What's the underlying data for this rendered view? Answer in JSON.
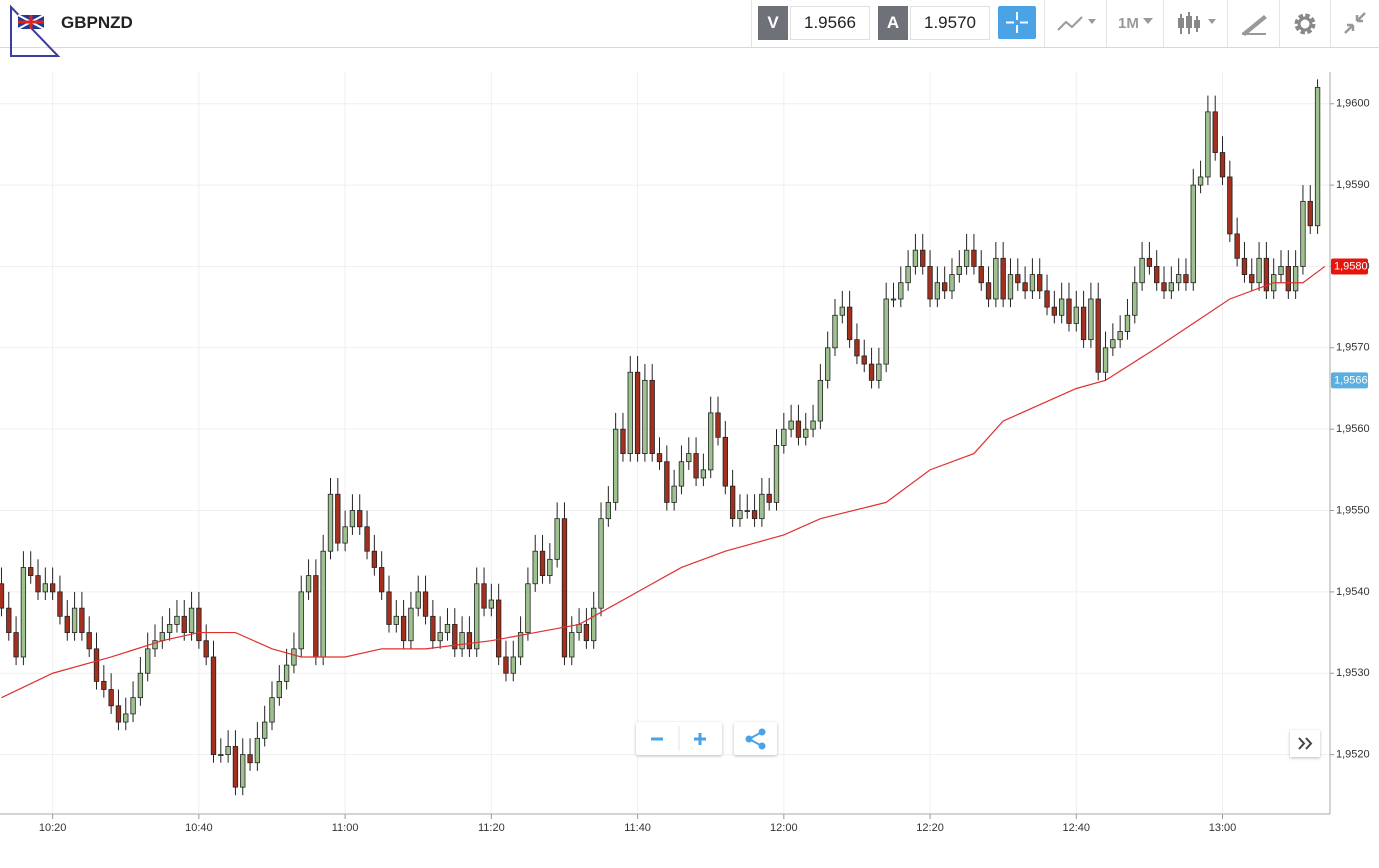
{
  "header": {
    "symbol": "GBPNZD",
    "bid_label": "V",
    "bid": "1.9566",
    "ask_label": "A",
    "ask": "1.9570",
    "timeframe": "1M"
  },
  "chart_data": {
    "type": "candlestick",
    "x": [
      613,
      614,
      615,
      616,
      617,
      618,
      619,
      620,
      621,
      622,
      623,
      624,
      625,
      626,
      627,
      628,
      629,
      630,
      631,
      632,
      633,
      634,
      635,
      636,
      637,
      638,
      639,
      640,
      641,
      642,
      643,
      644,
      645,
      646,
      647,
      648,
      649,
      650,
      651,
      652,
      653,
      654,
      655,
      656,
      657,
      658,
      659,
      660,
      661,
      662,
      663,
      664,
      665,
      666,
      667,
      668,
      669,
      670,
      671,
      672,
      673,
      674,
      675,
      676,
      677,
      678,
      679,
      680,
      681,
      682,
      683,
      684,
      685,
      686,
      687,
      688,
      689,
      690,
      691,
      692,
      693,
      694,
      695,
      696,
      697,
      698,
      699,
      700,
      701,
      702,
      703,
      704,
      705,
      706,
      707,
      708,
      709,
      710,
      711,
      712,
      713,
      714,
      715,
      716,
      717,
      718,
      719,
      720,
      721,
      722,
      723,
      724,
      725,
      726,
      727,
      728,
      729,
      730,
      731,
      732,
      733,
      734,
      735,
      736,
      737,
      738,
      739,
      740,
      741,
      742,
      743,
      744,
      745,
      746,
      747,
      748,
      749,
      750,
      751,
      752,
      753,
      754,
      755,
      756,
      757,
      758,
      759,
      760,
      761,
      762,
      763,
      764,
      765,
      766,
      767,
      768,
      769,
      770,
      771,
      772,
      773,
      774,
      775,
      776,
      777,
      778,
      779,
      780,
      781,
      782,
      783,
      784,
      785,
      786,
      787,
      788,
      789,
      790,
      791,
      792,
      793
    ],
    "open": [
      1.9541,
      1.9538,
      1.9535,
      1.9532,
      1.9543,
      1.9542,
      1.954,
      1.9541,
      1.954,
      1.9537,
      1.9535,
      1.9538,
      1.9535,
      1.9533,
      1.9529,
      1.9528,
      1.9526,
      1.9524,
      1.9525,
      1.9527,
      1.953,
      1.9533,
      1.9534,
      1.9535,
      1.9536,
      1.9537,
      1.9535,
      1.9538,
      1.9534,
      1.9532,
      1.952,
      1.952,
      1.9521,
      1.9516,
      1.952,
      1.9519,
      1.9522,
      1.9524,
      1.9527,
      1.9529,
      1.9531,
      1.9533,
      1.954,
      1.9542,
      1.9532,
      1.9545,
      1.9552,
      1.9546,
      1.9548,
      1.955,
      1.9548,
      1.9545,
      1.9543,
      1.954,
      1.9536,
      1.9537,
      1.9534,
      1.9538,
      1.954,
      1.9537,
      1.9534,
      1.9535,
      1.9536,
      1.9533,
      1.9535,
      1.9533,
      1.9541,
      1.9538,
      1.9539,
      1.9532,
      1.953,
      1.9532,
      1.9535,
      1.9541,
      1.9545,
      1.9542,
      1.9544,
      1.9549,
      1.9532,
      1.9535,
      1.9536,
      1.9534,
      1.9538,
      1.9549,
      1.9551,
      1.956,
      1.9557,
      1.9567,
      1.9557,
      1.9566,
      1.9557,
      1.9556,
      1.9551,
      1.9553,
      1.9556,
      1.9557,
      1.9554,
      1.9555,
      1.9562,
      1.9559,
      1.9553,
      1.9549,
      1.955,
      1.955,
      1.9549,
      1.9552,
      1.9551,
      1.9558,
      1.956,
      1.9561,
      1.9559,
      1.956,
      1.9561,
      1.9566,
      1.957,
      1.9574,
      1.9575,
      1.9571,
      1.9569,
      1.9568,
      1.9566,
      1.9568,
      1.9576,
      1.9576,
      1.9578,
      1.958,
      1.9582,
      1.958,
      1.9576,
      1.9578,
      1.9577,
      1.9579,
      1.958,
      1.9582,
      1.958,
      1.9578,
      1.9576,
      1.9581,
      1.9576,
      1.9579,
      1.9578,
      1.9577,
      1.9579,
      1.9577,
      1.9575,
      1.9574,
      1.9576,
      1.9573,
      1.9575,
      1.9571,
      1.9576,
      1.9567,
      1.957,
      1.9571,
      1.9572,
      1.9574,
      1.9578,
      1.9581,
      1.958,
      1.9578,
      1.9577,
      1.9578,
      1.9579,
      1.9578,
      1.959,
      1.9591,
      1.9599,
      1.9594,
      1.9591,
      1.9584,
      1.9581,
      1.9579,
      1.9578,
      1.9581,
      1.9577,
      1.9579,
      1.958,
      1.9577,
      1.958,
      1.9588,
      1.9585
    ],
    "high": [
      1.9543,
      1.954,
      1.9537,
      1.9545,
      1.9545,
      1.9544,
      1.9543,
      1.9543,
      1.9542,
      1.9539,
      1.954,
      1.954,
      1.9537,
      1.9535,
      1.9531,
      1.953,
      1.9528,
      1.9527,
      1.9529,
      1.9532,
      1.9535,
      1.9536,
      1.9537,
      1.9538,
      1.9539,
      1.9539,
      1.954,
      1.954,
      1.9536,
      1.9534,
      1.9522,
      1.9523,
      1.9523,
      1.9522,
      1.9522,
      1.9524,
      1.9526,
      1.9529,
      1.9531,
      1.9533,
      1.9535,
      1.9542,
      1.9544,
      1.9544,
      1.9547,
      1.9554,
      1.9554,
      1.955,
      1.9552,
      1.9552,
      1.955,
      1.9547,
      1.9545,
      1.9542,
      1.9539,
      1.9539,
      1.954,
      1.9542,
      1.9542,
      1.9539,
      1.9537,
      1.9538,
      1.9538,
      1.9537,
      1.9537,
      1.9543,
      1.9543,
      1.9541,
      1.9541,
      1.9534,
      1.9534,
      1.9537,
      1.9543,
      1.9547,
      1.9547,
      1.9546,
      1.9551,
      1.9551,
      1.9537,
      1.9538,
      1.9538,
      1.954,
      1.9551,
      1.9553,
      1.9562,
      1.9562,
      1.9569,
      1.9569,
      1.9568,
      1.9568,
      1.9559,
      1.9558,
      1.9555,
      1.9558,
      1.9559,
      1.9559,
      1.9557,
      1.9564,
      1.9564,
      1.9561,
      1.9555,
      1.9552,
      1.9552,
      1.9552,
      1.9554,
      1.9554,
      1.956,
      1.9562,
      1.9563,
      1.9563,
      1.9562,
      1.9563,
      1.9568,
      1.9572,
      1.9576,
      1.9577,
      1.9577,
      1.9573,
      1.9571,
      1.957,
      1.957,
      1.9578,
      1.9578,
      1.958,
      1.9582,
      1.9584,
      1.9584,
      1.9582,
      1.958,
      1.958,
      1.9581,
      1.9582,
      1.9584,
      1.9584,
      1.9582,
      1.958,
      1.9583,
      1.9583,
      1.9581,
      1.9581,
      1.958,
      1.9581,
      1.9581,
      1.9579,
      1.9577,
      1.9578,
      1.9578,
      1.9577,
      1.9577,
      1.9578,
      1.9578,
      1.9572,
      1.9573,
      1.9574,
      1.9576,
      1.958,
      1.9583,
      1.9583,
      1.9582,
      1.958,
      1.958,
      1.9581,
      1.9581,
      1.9592,
      1.9593,
      1.9601,
      1.9601,
      1.9596,
      1.9593,
      1.9586,
      1.9583,
      1.9581,
      1.9583,
      1.9583,
      1.9581,
      1.9582,
      1.9582,
      1.9582,
      1.959,
      1.959,
      1.9603
    ],
    "low": [
      1.9537,
      1.9534,
      1.9531,
      1.9531,
      1.9541,
      1.9539,
      1.9539,
      1.9539,
      1.9536,
      1.9534,
      1.9534,
      1.9534,
      1.9532,
      1.9528,
      1.9527,
      1.9525,
      1.9523,
      1.9523,
      1.9524,
      1.9526,
      1.9529,
      1.9532,
      1.9533,
      1.9534,
      1.9535,
      1.9534,
      1.9534,
      1.9533,
      1.9531,
      1.9519,
      1.9519,
      1.9519,
      1.9515,
      1.9515,
      1.9518,
      1.9518,
      1.9521,
      1.9523,
      1.9526,
      1.9528,
      1.953,
      1.9532,
      1.9539,
      1.9531,
      1.9531,
      1.9544,
      1.9545,
      1.9545,
      1.9547,
      1.9547,
      1.9544,
      1.9542,
      1.9539,
      1.9535,
      1.9535,
      1.9533,
      1.9533,
      1.9537,
      1.9536,
      1.9533,
      1.9533,
      1.9534,
      1.9532,
      1.9532,
      1.9532,
      1.9532,
      1.9537,
      1.9537,
      1.9531,
      1.9529,
      1.9529,
      1.9531,
      1.9534,
      1.954,
      1.9541,
      1.9541,
      1.9543,
      1.9531,
      1.9531,
      1.9534,
      1.9533,
      1.9533,
      1.9537,
      1.9548,
      1.955,
      1.9556,
      1.9556,
      1.9556,
      1.9556,
      1.9556,
      1.9555,
      1.955,
      1.955,
      1.9552,
      1.9555,
      1.9553,
      1.9553,
      1.9554,
      1.9558,
      1.9552,
      1.9548,
      1.9548,
      1.9549,
      1.9548,
      1.9548,
      1.955,
      1.955,
      1.9557,
      1.9559,
      1.9558,
      1.9558,
      1.9559,
      1.956,
      1.9565,
      1.9569,
      1.9573,
      1.957,
      1.9568,
      1.9567,
      1.9565,
      1.9565,
      1.9567,
      1.9575,
      1.9575,
      1.9577,
      1.9579,
      1.9579,
      1.9575,
      1.9575,
      1.9576,
      1.9576,
      1.9578,
      1.9579,
      1.9579,
      1.9577,
      1.9575,
      1.9575,
      1.9575,
      1.9575,
      1.9577,
      1.9576,
      1.9576,
      1.9576,
      1.9574,
      1.9573,
      1.9573,
      1.9572,
      1.9572,
      1.957,
      1.957,
      1.9566,
      1.9566,
      1.9569,
      1.957,
      1.9571,
      1.9573,
      1.9577,
      1.9579,
      1.9577,
      1.9576,
      1.9576,
      1.9577,
      1.9577,
      1.9577,
      1.9589,
      1.959,
      1.9593,
      1.959,
      1.9583,
      1.958,
      1.9578,
      1.9577,
      1.9577,
      1.9576,
      1.9576,
      1.9578,
      1.9576,
      1.9576,
      1.9579,
      1.9584,
      1.9584
    ],
    "close": [
      1.9538,
      1.9535,
      1.9532,
      1.9543,
      1.9542,
      1.954,
      1.9541,
      1.954,
      1.9537,
      1.9535,
      1.9538,
      1.9535,
      1.9533,
      1.9529,
      1.9528,
      1.9526,
      1.9524,
      1.9525,
      1.9527,
      1.953,
      1.9533,
      1.9534,
      1.9535,
      1.9536,
      1.9537,
      1.9535,
      1.9538,
      1.9534,
      1.9532,
      1.952,
      1.952,
      1.9521,
      1.9516,
      1.952,
      1.9519,
      1.9522,
      1.9524,
      1.9527,
      1.9529,
      1.9531,
      1.9533,
      1.954,
      1.9542,
      1.9532,
      1.9545,
      1.9552,
      1.9546,
      1.9548,
      1.955,
      1.9548,
      1.9545,
      1.9543,
      1.954,
      1.9536,
      1.9537,
      1.9534,
      1.9538,
      1.954,
      1.9537,
      1.9534,
      1.9535,
      1.9536,
      1.9533,
      1.9535,
      1.9533,
      1.9541,
      1.9538,
      1.9539,
      1.9532,
      1.953,
      1.9532,
      1.9535,
      1.9541,
      1.9545,
      1.9542,
      1.9544,
      1.9549,
      1.9532,
      1.9535,
      1.9536,
      1.9534,
      1.9538,
      1.9549,
      1.9551,
      1.956,
      1.9557,
      1.9567,
      1.9557,
      1.9566,
      1.9557,
      1.9556,
      1.9551,
      1.9553,
      1.9556,
      1.9557,
      1.9554,
      1.9555,
      1.9562,
      1.9559,
      1.9553,
      1.9549,
      1.955,
      1.955,
      1.9549,
      1.9552,
      1.9551,
      1.9558,
      1.956,
      1.9561,
      1.9559,
      1.956,
      1.9561,
      1.9566,
      1.957,
      1.9574,
      1.9575,
      1.9571,
      1.9569,
      1.9568,
      1.9566,
      1.9568,
      1.9576,
      1.9576,
      1.9578,
      1.958,
      1.9582,
      1.958,
      1.9576,
      1.9578,
      1.9577,
      1.9579,
      1.958,
      1.9582,
      1.958,
      1.9578,
      1.9576,
      1.9581,
      1.9576,
      1.9579,
      1.9578,
      1.9577,
      1.9579,
      1.9577,
      1.9575,
      1.9574,
      1.9576,
      1.9573,
      1.9575,
      1.9571,
      1.9576,
      1.9567,
      1.957,
      1.9571,
      1.9572,
      1.9574,
      1.9578,
      1.9581,
      1.958,
      1.9578,
      1.9577,
      1.9578,
      1.9579,
      1.9578,
      1.959,
      1.9591,
      1.9599,
      1.9594,
      1.9591,
      1.9584,
      1.9581,
      1.9579,
      1.9578,
      1.9581,
      1.9577,
      1.9579,
      1.958,
      1.9577,
      1.958,
      1.9588,
      1.9585,
      1.9602
    ],
    "up_color": "#9dc28f",
    "down_color": "#a3301f",
    "moving_average": {
      "color": "#e03030",
      "x": [
        613,
        620,
        628,
        635,
        640,
        645,
        650,
        654,
        660,
        665,
        671,
        680,
        686,
        692,
        700,
        706,
        712,
        720,
        725,
        734,
        740,
        746,
        750,
        760,
        764,
        771,
        776,
        781,
        787,
        791,
        794
      ],
      "values": [
        1.9527,
        1.953,
        1.9532,
        1.9534,
        1.9535,
        1.9535,
        1.9533,
        1.9532,
        1.9532,
        1.9533,
        1.9533,
        1.9534,
        1.9535,
        1.9536,
        1.954,
        1.9543,
        1.9545,
        1.9547,
        1.9549,
        1.9551,
        1.9555,
        1.9557,
        1.9561,
        1.9565,
        1.9566,
        1.957,
        1.9573,
        1.9576,
        1.9578,
        1.9578,
        1.958
      ]
    },
    "xlim": [
      612.8,
      794.7
    ],
    "ylim": [
      1.95127,
      1.96039
    ],
    "xticks": [
      {
        "value": 620,
        "label": "10:20"
      },
      {
        "value": 640,
        "label": "10:40"
      },
      {
        "value": 660,
        "label": "11:00"
      },
      {
        "value": 680,
        "label": "11:20"
      },
      {
        "value": 700,
        "label": "11:40"
      },
      {
        "value": 720,
        "label": "12:00"
      },
      {
        "value": 740,
        "label": "12:20"
      },
      {
        "value": 760,
        "label": "12:40"
      },
      {
        "value": 780,
        "label": "13:00"
      }
    ],
    "yticks": [
      {
        "value": 1.952,
        "label": "1,9520"
      },
      {
        "value": 1.953,
        "label": "1,9530"
      },
      {
        "value": 1.954,
        "label": "1,9540"
      },
      {
        "value": 1.955,
        "label": "1,9550"
      },
      {
        "value": 1.956,
        "label": "1,9560"
      },
      {
        "value": 1.957,
        "label": "1,9570"
      },
      {
        "value": 1.958,
        "label": "1,9580"
      },
      {
        "value": 1.959,
        "label": "1,9590"
      },
      {
        "value": 1.96,
        "label": "1,9600"
      }
    ],
    "price_labels": [
      {
        "value": 1.958,
        "label": "1,9580",
        "color": "#e8140c"
      },
      {
        "value": 1.9566,
        "label": "1,9566",
        "color": "#5aaee0"
      }
    ],
    "grid": true
  }
}
